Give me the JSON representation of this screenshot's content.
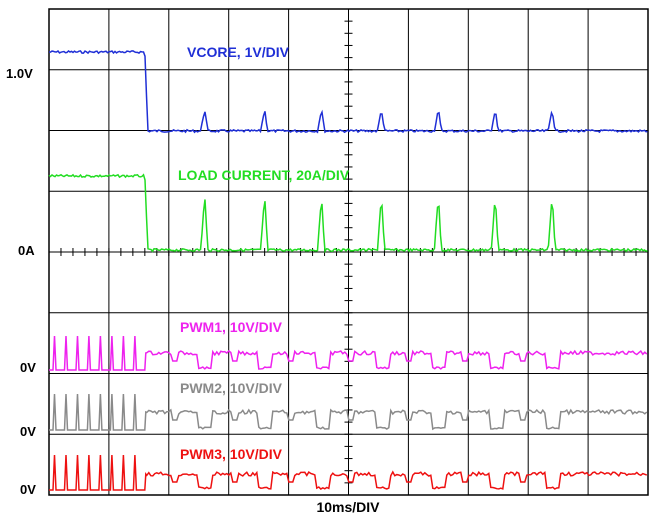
{
  "chart_data": {
    "type": "line",
    "xlabel": "10ms/DIV",
    "grid": true,
    "divisions": {
      "x": 10,
      "y": 8
    },
    "x_range_ms": [
      0,
      100
    ],
    "x_units": "ms",
    "step_time_ms": 16,
    "left_markers": [
      "1.0V",
      "0A",
      "0V",
      "0V",
      "0V"
    ],
    "series": [
      {
        "name": "VCORE, 1V/DIV",
        "color": "#1f2fd6",
        "label_text": "VCORE, 1V/DIV",
        "before_step_level": 1.1,
        "after_step_level": 0.45,
        "spike_times_ms": [
          26,
          36,
          45.5,
          55.5,
          65,
          74.5,
          84
        ],
        "spike_height": 0.3,
        "marker_ref": "1.0V"
      },
      {
        "name": "LOAD CURRENT, 20A/DIV",
        "color": "#22dd22",
        "label_text": "LOAD CURRENT, 20A/DIV",
        "before_step_level": 30,
        "after_step_level": 0,
        "spike_times_ms": [
          26,
          36,
          45.5,
          55.5,
          65,
          74.5,
          84
        ],
        "spike_height": 20,
        "marker_ref": "0A"
      },
      {
        "name": "PWM1, 10V/DIV",
        "color": "#ee22ee",
        "label_text": "PWM1, 10V/DIV",
        "burst_count": 8,
        "marker_ref": "0V"
      },
      {
        "name": "PWM2, 10V/DIV",
        "color": "#8a8a8a",
        "label_text": "PWM2, 10V/DIV",
        "burst_count": 8,
        "marker_ref": "0V"
      },
      {
        "name": "PWM3, 10V/DIV",
        "color": "#ee1111",
        "label_text": "PWM3, 10V/DIV",
        "burst_count": 8,
        "marker_ref": "0V"
      }
    ]
  }
}
